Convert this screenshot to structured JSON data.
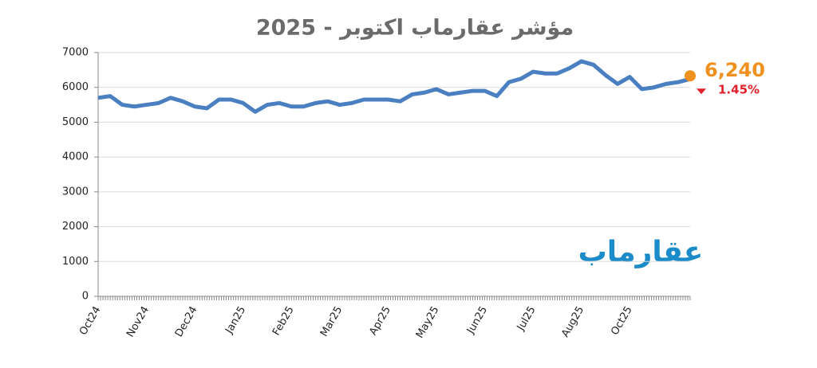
{
  "chart_data": {
    "type": "line",
    "title": "مؤشر عقارماب اكتوبر - 2025",
    "brand": "عقارماب",
    "categories": [
      "Oct24",
      null,
      null,
      null,
      "Nov24",
      null,
      null,
      null,
      "Dec24",
      null,
      null,
      null,
      "Jan25",
      null,
      null,
      null,
      "Feb25",
      null,
      null,
      null,
      "Mar25",
      null,
      null,
      null,
      "Apr25",
      null,
      null,
      null,
      "May25",
      null,
      null,
      null,
      "Jun25",
      null,
      null,
      null,
      "Jul25",
      null,
      null,
      null,
      "Aug25",
      null,
      null,
      null,
      "Oct25",
      null,
      null,
      null,
      null,
      null
    ],
    "series": [
      {
        "name": "مؤشر عقارماب",
        "color": "#4a7fc1",
        "values": [
          5700,
          5750,
          5500,
          5450,
          5500,
          5550,
          5700,
          5600,
          5450,
          5400,
          5650,
          5650,
          5550,
          5300,
          5500,
          5550,
          5450,
          5450,
          5550,
          5600,
          5500,
          5550,
          5650,
          5650,
          5650,
          5600,
          5800,
          5850,
          5950,
          5800,
          5850,
          5900,
          5900,
          5750,
          6150,
          6250,
          6450,
          6400,
          6400,
          6550,
          6750,
          6650,
          6350,
          6100,
          6300,
          5950,
          6000,
          6100,
          6150,
          6240
        ],
        "value_labels": [
          null,
          null,
          null,
          null,
          null,
          null,
          null,
          null,
          null,
          null,
          null,
          null,
          null,
          null,
          null,
          null,
          null,
          null,
          null,
          null,
          null,
          null,
          null,
          null,
          null,
          null,
          null,
          null,
          null,
          null,
          null,
          null,
          null,
          null,
          null,
          null,
          null,
          null,
          null,
          null,
          null,
          null,
          null,
          null,
          null,
          null,
          null,
          null,
          null,
          "6,240"
        ]
      }
    ],
    "change_label": "1.45%",
    "last_color": "#f0901e",
    "change_color": "#e0202a",
    "ylim": [
      0,
      7000
    ],
    "yticks": [
      0,
      1000,
      2000,
      3000,
      4000,
      5000,
      6000,
      7000
    ],
    "grid": true
  }
}
